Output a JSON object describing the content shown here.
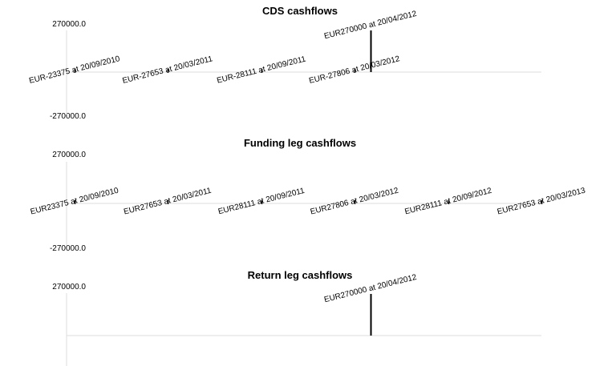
{
  "chart_data": [
    {
      "type": "bar",
      "title": "CDS cashflows",
      "ytop": "270000.0",
      "ybottom": "-270000.0",
      "ylim": [
        -270000,
        270000
      ],
      "flows": [
        {
          "date": "20/09/2010",
          "value": -23375,
          "label": "EUR-23375 at 20/09/2010"
        },
        {
          "date": "20/03/2011",
          "value": -27653,
          "label": "EUR-27653 at 20/03/2011"
        },
        {
          "date": "20/09/2011",
          "value": -28111,
          "label": "EUR-28111 at 20/09/2011"
        },
        {
          "date": "20/03/2012",
          "value": -27806,
          "label": "EUR-27806 at 20/03/2012"
        },
        {
          "date": "20/04/2012",
          "value": 270000,
          "label": "EUR270000 at 20/04/2012"
        }
      ]
    },
    {
      "type": "bar",
      "title": "Funding leg cashflows",
      "ytop": "270000.0",
      "ybottom": "-270000.0",
      "ylim": [
        -270000,
        270000
      ],
      "flows": [
        {
          "date": "20/09/2010",
          "value": 23375,
          "label": "EUR23375 at 20/09/2010"
        },
        {
          "date": "20/03/2011",
          "value": 27653,
          "label": "EUR27653 at 20/03/2011"
        },
        {
          "date": "20/09/2011",
          "value": 28111,
          "label": "EUR28111 at 20/09/2011"
        },
        {
          "date": "20/03/2012",
          "value": 27806,
          "label": "EUR27806 at 20/03/2012"
        },
        {
          "date": "20/09/2012",
          "value": 28111,
          "label": "EUR28111 at 20/09/2012"
        },
        {
          "date": "20/03/2013",
          "value": 27653,
          "label": "EUR27653 at 20/03/2013"
        }
      ]
    },
    {
      "type": "bar",
      "title": "Return leg cashflows",
      "ytop": "270000.0",
      "ybottom": "",
      "ylim": [
        -270000,
        270000
      ],
      "flows": [
        {
          "date": "20/04/2012",
          "value": 270000,
          "label": "EUR270000 at 20/04/2012"
        }
      ]
    }
  ]
}
